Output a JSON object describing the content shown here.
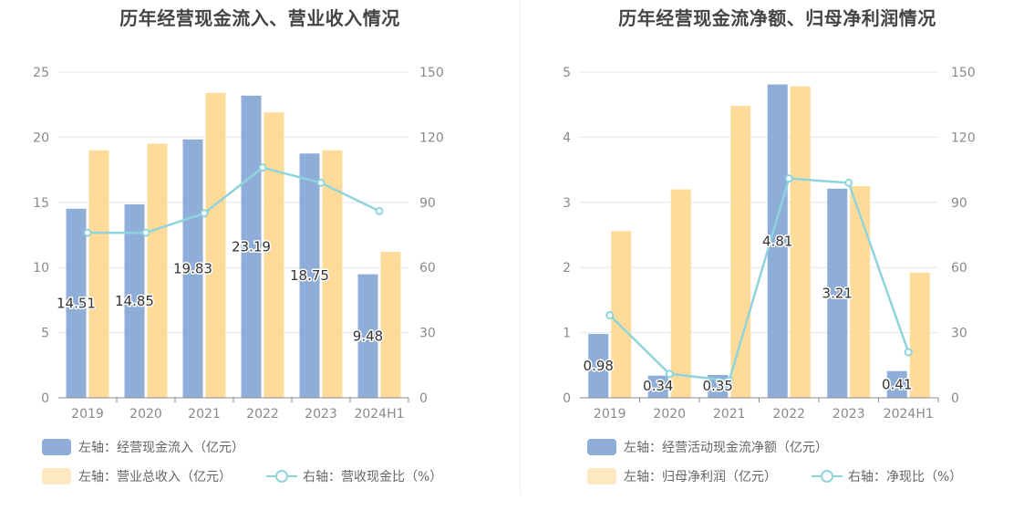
{
  "chart_data": [
    {
      "type": "bar",
      "title": "历年经营现金流入、营业收入情况",
      "categories": [
        "2019",
        "2020",
        "2021",
        "2022",
        "2023",
        "2024H1"
      ],
      "series": [
        {
          "name": "左轴：经营现金流入（亿元）",
          "kind": "bar",
          "axis": "left",
          "color": "#8eadd9",
          "values": [
            14.51,
            14.85,
            19.83,
            23.19,
            18.75,
            9.48
          ],
          "labels": [
            "14.51",
            "14.85",
            "19.83",
            "23.19",
            "18.75",
            "9.48"
          ]
        },
        {
          "name": "左轴：营业总收入（亿元）",
          "kind": "bar",
          "axis": "left",
          "color": "#ffdb9a",
          "values": [
            19.0,
            19.5,
            23.4,
            21.9,
            19.0,
            11.2
          ]
        },
        {
          "name": "右轴：营收现金比（%）",
          "kind": "line",
          "axis": "right",
          "color": "#8fd4dc",
          "values": [
            76,
            76,
            85,
            106,
            99,
            86
          ]
        }
      ],
      "y_left": {
        "ticks": [
          "0",
          "5",
          "10",
          "15",
          "20",
          "25"
        ],
        "max": 25
      },
      "y_right": {
        "ticks": [
          "0",
          "30",
          "60",
          "90",
          "120",
          "150"
        ],
        "max": 150
      },
      "grid": true,
      "legend_position": "bottom-left"
    },
    {
      "type": "bar",
      "title": "历年经营现金流净额、归母净利润情况",
      "categories": [
        "2019",
        "2020",
        "2021",
        "2022",
        "2023",
        "2024H1"
      ],
      "series": [
        {
          "name": "左轴：经营活动现金流净额（亿元）",
          "kind": "bar",
          "axis": "left",
          "color": "#8eadd9",
          "values": [
            0.98,
            0.34,
            0.35,
            4.81,
            3.21,
            0.41
          ],
          "labels": [
            "0.98",
            "0.34",
            "0.35",
            "4.81",
            "3.21",
            "0.41"
          ]
        },
        {
          "name": "左轴：归母净利润（亿元）",
          "kind": "bar",
          "axis": "left",
          "color": "#ffdb9a",
          "values": [
            2.56,
            3.2,
            4.48,
            4.78,
            3.25,
            1.92
          ]
        },
        {
          "name": "右轴：净现比（%）",
          "kind": "line",
          "axis": "right",
          "color": "#8fd4dc",
          "values": [
            38,
            11,
            8,
            101,
            99,
            21
          ]
        }
      ],
      "y_left": {
        "ticks": [
          "0",
          "1",
          "2",
          "3",
          "4",
          "5"
        ],
        "max": 5
      },
      "y_right": {
        "ticks": [
          "0",
          "30",
          "60",
          "90",
          "120",
          "150"
        ],
        "max": 150
      },
      "grid": true,
      "legend_position": "bottom-left"
    }
  ]
}
